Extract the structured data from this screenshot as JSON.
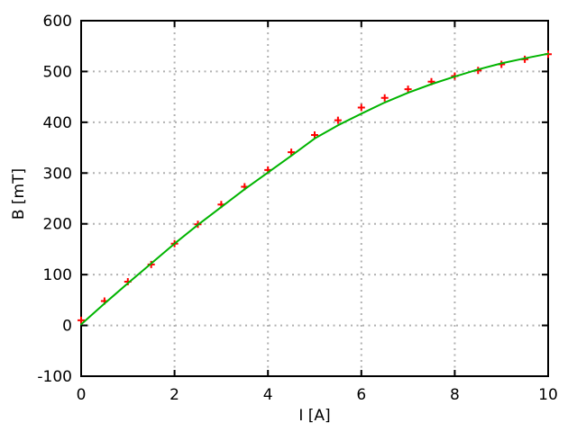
{
  "chart_data": {
    "type": "scatter",
    "title": "",
    "xlabel": "I [A]",
    "ylabel": "B [mT]",
    "xlim": [
      0,
      10
    ],
    "ylim": [
      -100,
      600
    ],
    "xticks": [
      0,
      2,
      4,
      6,
      8,
      10
    ],
    "yticks": [
      -100,
      0,
      100,
      200,
      300,
      400,
      500,
      600
    ],
    "grid": true,
    "legend": "none",
    "colors": {
      "background": "#ffffff",
      "axis": "#000000",
      "grid": "#b0b0b0",
      "points": "#ff0000",
      "curve": "#00b400"
    },
    "series": [
      {
        "name": "measured-data",
        "kind": "points",
        "marker": "plus",
        "marker_size": 8,
        "color": "#ff0000",
        "x": [
          0,
          0.5,
          1,
          1.5,
          2,
          2.5,
          3,
          3.5,
          4,
          4.5,
          5,
          5.5,
          6,
          6.5,
          7,
          7.5,
          8,
          8.5,
          9,
          9.5,
          10
        ],
        "y": [
          10,
          48,
          86,
          120,
          161,
          199,
          238,
          273,
          306,
          341,
          375,
          404,
          429,
          448,
          465,
          480,
          491,
          502,
          514,
          524,
          534
        ]
      },
      {
        "name": "fit-curve",
        "kind": "line",
        "color": "#00b400",
        "x": [
          0,
          0.5,
          1,
          1.5,
          2,
          2.5,
          3,
          3.5,
          4,
          4.5,
          5,
          5.5,
          6,
          6.5,
          7,
          7.5,
          8,
          8.5,
          9,
          9.5,
          10
        ],
        "y": [
          2,
          43,
          83,
          122,
          161,
          198,
          233,
          268,
          301,
          334,
          368,
          394,
          417,
          439,
          458,
          475,
          490,
          504,
          516,
          526,
          535
        ]
      }
    ]
  }
}
